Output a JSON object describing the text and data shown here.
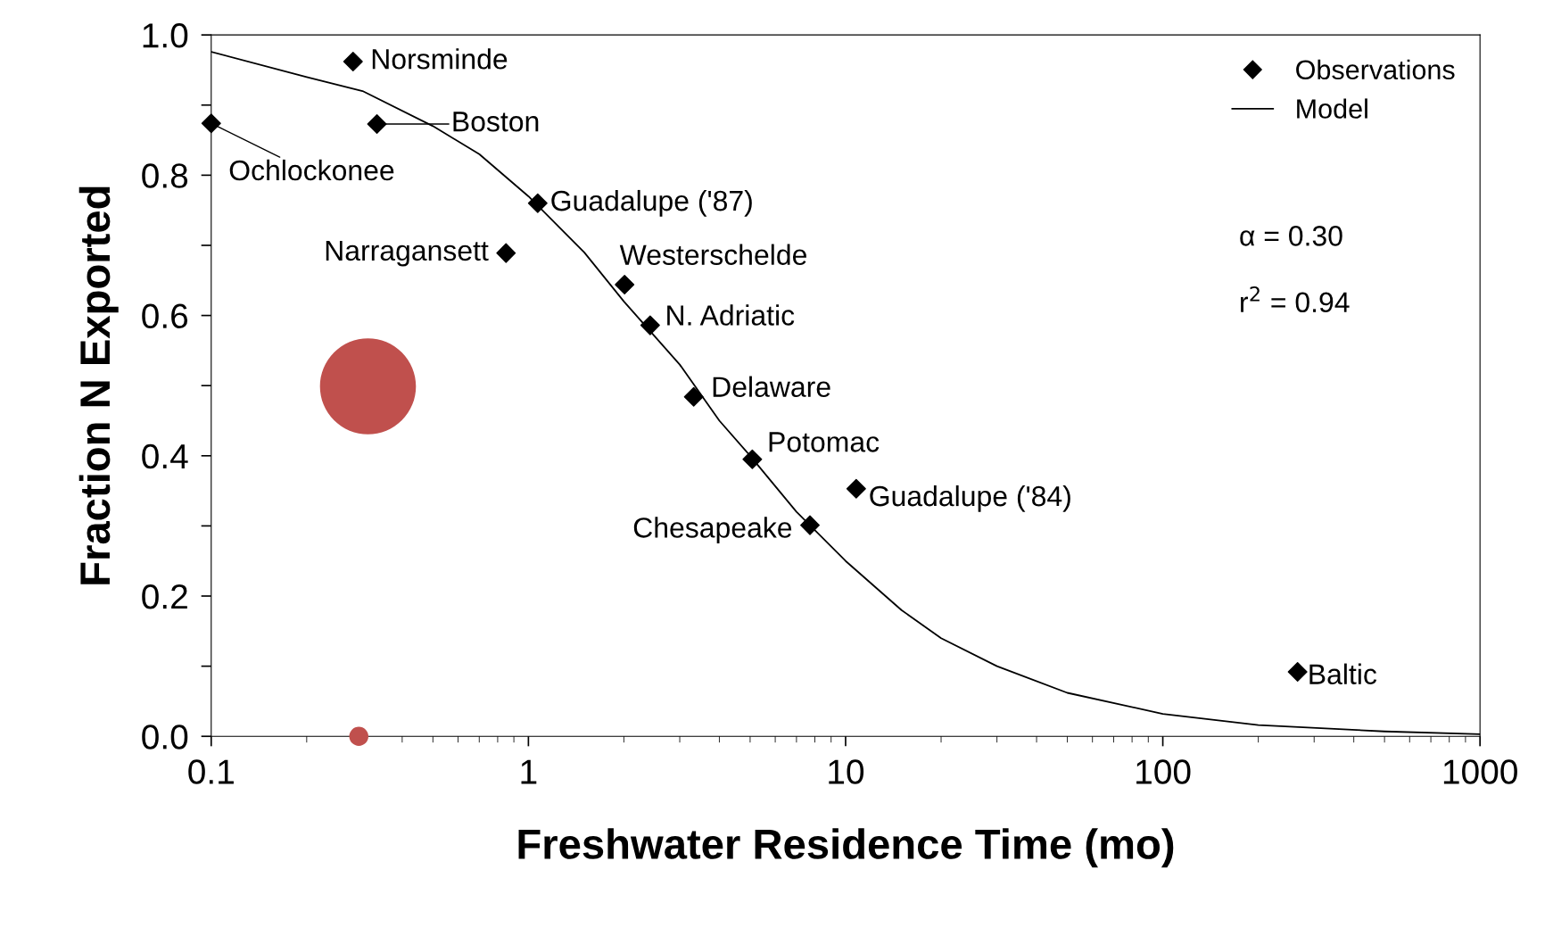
{
  "chart_data": {
    "type": "scatter",
    "xlabel": "Freshwater Residence Time (mo)",
    "ylabel": "Fraction N Exported",
    "log": "x",
    "xlim": [
      0.1,
      1000
    ],
    "xticks": [
      0.1,
      1,
      10,
      100,
      1000
    ],
    "ylim": [
      0,
      1.0
    ],
    "yticks": [
      {
        "value": 0.0,
        "label": "0.0"
      },
      {
        "value": 0.1,
        "label": null
      },
      {
        "value": 0.2,
        "label": "0.2"
      },
      {
        "value": 0.3,
        "label": null
      },
      {
        "value": 0.4,
        "label": "0.4"
      },
      {
        "value": 0.5,
        "label": null
      },
      {
        "value": 0.6,
        "label": "0.6"
      },
      {
        "value": 0.7,
        "label": null
      },
      {
        "value": 0.8,
        "label": "0.8"
      },
      {
        "value": 0.9,
        "label": null
      },
      {
        "value": 1.0,
        "label": "1.0"
      }
    ],
    "grid": false,
    "legend": "top right",
    "series": [
      {
        "name": "Observations",
        "marker": "diamond",
        "color": "#000000",
        "x": [
          0.28,
          0.333,
          0.1,
          1.07,
          0.85,
          2.01,
          2.42,
          3.32,
          5.08,
          10.8,
          7.72,
          266
        ],
        "values": [
          0.962,
          0.873,
          0.874,
          0.76,
          0.689,
          0.644,
          0.586,
          0.484,
          0.395,
          0.353,
          0.301,
          0.092
        ]
      },
      {
        "name": "Model",
        "type": "line",
        "line_style": "solid",
        "color": "#000000",
        "x": [
          0.1,
          0.2,
          0.3,
          0.5,
          0.7,
          1,
          1.5,
          2,
          3,
          4,
          5,
          7,
          10,
          15,
          20,
          30,
          50,
          100,
          200,
          500,
          1000
        ],
        "values": [
          0.976,
          0.94,
          0.92,
          0.87,
          0.83,
          0.77,
          0.69,
          0.62,
          0.53,
          0.45,
          0.4,
          0.32,
          0.25,
          0.18,
          0.14,
          0.1,
          0.062,
          0.032,
          0.016,
          0.007,
          0.003
        ]
      },
      {
        "type": "bubble",
        "color": "#c0504d",
        "x": [
          0.312,
          0.292
        ],
        "values": [
          0.499,
          0.0
        ],
        "sizes": [
          1,
          0.04
        ]
      }
    ],
    "annotations": [
      {
        "text": "Norsminde",
        "x": 0.28,
        "y": 0.962
      },
      {
        "text": "Boston",
        "x": 0.333,
        "y": 0.873
      },
      {
        "text": "Ochlockonee",
        "x": 0.1,
        "y": 0.874
      },
      {
        "text": "Guadalupe ('87)",
        "x": 1.07,
        "y": 0.76
      },
      {
        "text": "Narragansett",
        "x": 0.85,
        "y": 0.689
      },
      {
        "text": "Westerschelde",
        "x": 2.01,
        "y": 0.644
      },
      {
        "text": "N. Adriatic",
        "x": 2.42,
        "y": 0.586
      },
      {
        "text": "Delaware",
        "x": 3.32,
        "y": 0.484
      },
      {
        "text": "Potomac",
        "x": 5.08,
        "y": 0.395
      },
      {
        "text": "Guadalupe ('84)",
        "x": 10.8,
        "y": 0.353
      },
      {
        "text": "Chesapeake",
        "x": 7.72,
        "y": 0.301
      },
      {
        "text": "Baltic",
        "x": 266,
        "y": 0.092
      },
      "α = 0.30",
      "r$^{2}$ = 0.94"
    ]
  }
}
